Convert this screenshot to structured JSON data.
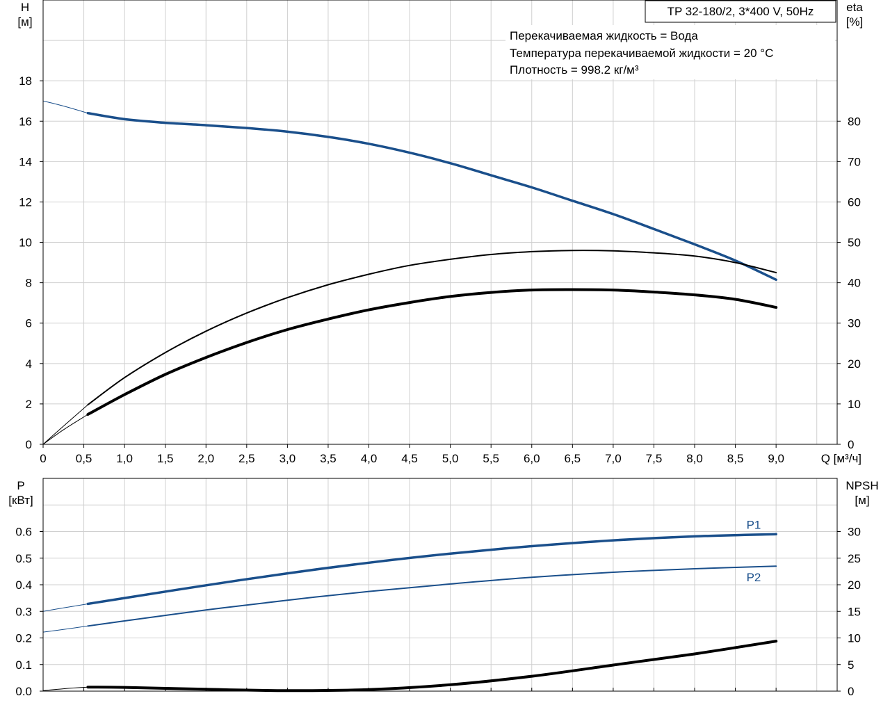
{
  "chart_data": [
    {
      "type": "line",
      "title": "TP 32-180/2, 3*400 V, 50Hz",
      "annotations": [
        "Перекачиваемая жидкость = Вода",
        "Температура перекачиваемой жидкости = 20 °C",
        "Плотность = 998.2 кг/м³"
      ],
      "xlabel": "Q [м³/ч]",
      "ylabel": "H\n[м]",
      "y2label": "eta\n[%]",
      "xlim": [
        0,
        9.75
      ],
      "ylim": [
        0,
        22
      ],
      "y2lim": [
        0,
        110
      ],
      "x_ticks": [
        "0",
        "0,5",
        "1,0",
        "1,5",
        "2,0",
        "2,5",
        "3,0",
        "3,5",
        "4,0",
        "4,5",
        "5,0",
        "5,5",
        "6,0",
        "6,5",
        "7,0",
        "7,5",
        "8,0",
        "8,5",
        "9,0"
      ],
      "y_ticks": [
        "0",
        "2",
        "4",
        "6",
        "8",
        "10",
        "12",
        "14",
        "16",
        "18"
      ],
      "y2_ticks": [
        "0",
        "10",
        "20",
        "30",
        "40",
        "50",
        "60",
        "70",
        "80"
      ],
      "grid": true,
      "series": [
        {
          "name": "",
          "axis": "left",
          "color": "#1a4f8b",
          "extension": {
            "x": [
              0,
              0.25,
              0.55
            ],
            "y": [
              17.0,
              16.75,
              16.4
            ]
          },
          "x": [
            0.55,
            1.0,
            1.5,
            2.0,
            2.5,
            3.0,
            3.5,
            4.0,
            4.5,
            5.0,
            5.5,
            6.0,
            6.5,
            7.0,
            7.5,
            8.0,
            8.5,
            9.0
          ],
          "y": [
            16.4,
            16.1,
            15.92,
            15.8,
            15.66,
            15.48,
            15.22,
            14.88,
            14.44,
            13.92,
            13.32,
            12.72,
            12.06,
            11.4,
            10.66,
            9.9,
            9.1,
            8.15
          ]
        },
        {
          "name": "",
          "axis": "right",
          "color": "#000000",
          "extension": {
            "x": [
              0,
              0.25,
              0.55
            ],
            "y": [
              0,
              4.5,
              9.8
            ]
          },
          "x": [
            0.55,
            1.0,
            1.5,
            2.0,
            2.5,
            3.0,
            3.5,
            4.0,
            4.5,
            5.0,
            5.5,
            6.0,
            6.5,
            7.0,
            7.5,
            8.0,
            8.5,
            9.0
          ],
          "y": [
            9.8,
            16.5,
            22.7,
            28.0,
            32.5,
            36.3,
            39.5,
            42.1,
            44.3,
            45.8,
            47.0,
            47.7,
            48.0,
            47.9,
            47.4,
            46.6,
            45.0,
            42.5
          ]
        },
        {
          "name": "",
          "axis": "right",
          "color": "#000000",
          "extension": {
            "x": [
              0,
              0.25,
              0.55
            ],
            "y": [
              0,
              3.6,
              7.4
            ]
          },
          "x": [
            0.55,
            1.0,
            1.5,
            2.0,
            2.5,
            3.0,
            3.5,
            4.0,
            4.5,
            5.0,
            5.5,
            6.0,
            6.5,
            7.0,
            7.5,
            8.0,
            8.5,
            9.0
          ],
          "y": [
            7.4,
            12.3,
            17.3,
            21.5,
            25.2,
            28.4,
            31.0,
            33.3,
            35.1,
            36.6,
            37.6,
            38.2,
            38.3,
            38.2,
            37.7,
            37.0,
            35.9,
            33.9
          ]
        }
      ]
    },
    {
      "type": "line",
      "xlim": [
        0,
        9.75
      ],
      "ylabel": "P\n[кВт]",
      "y2label": "NPSH\n[м]",
      "ylim": [
        0,
        0.8
      ],
      "y2lim": [
        0,
        40
      ],
      "y_ticks": [
        "0.0",
        "0.1",
        "0.2",
        "0.3",
        "0.4",
        "0.5",
        "0.6"
      ],
      "y2_ticks": [
        "0",
        "5",
        "10",
        "15",
        "20",
        "25",
        "30"
      ],
      "grid": true,
      "series": [
        {
          "name": "P1",
          "axis": "left",
          "color": "#1a4f8b",
          "extension": {
            "x": [
              0,
              0.25,
              0.55
            ],
            "y": [
              0.3,
              0.313,
              0.328
            ]
          },
          "x": [
            0.55,
            1.0,
            2.0,
            3.0,
            4.0,
            5.0,
            6.0,
            7.0,
            8.0,
            9.0
          ],
          "y": [
            0.328,
            0.35,
            0.398,
            0.443,
            0.483,
            0.517,
            0.545,
            0.567,
            0.582,
            0.59
          ]
        },
        {
          "name": "P2",
          "axis": "left",
          "color": "#1a4f8b",
          "extension": {
            "x": [
              0,
              0.25,
              0.55
            ],
            "y": [
              0.222,
              0.232,
              0.245
            ]
          },
          "x": [
            0.55,
            1.0,
            2.0,
            3.0,
            4.0,
            5.0,
            6.0,
            7.0,
            8.0,
            9.0
          ],
          "y": [
            0.245,
            0.264,
            0.305,
            0.342,
            0.375,
            0.403,
            0.428,
            0.447,
            0.46,
            0.47
          ]
        },
        {
          "name": "",
          "axis": "right",
          "color": "#000000",
          "extension": {
            "x": [
              0,
              0.25,
              0.55
            ],
            "y": [
              0.1,
              0.45,
              0.75
            ]
          },
          "x": [
            0.55,
            1.0,
            2.0,
            3.0,
            4.0,
            5.0,
            6.0,
            7.0,
            8.0,
            9.0
          ],
          "y": [
            0.75,
            0.7,
            0.35,
            0.1,
            0.3,
            1.2,
            2.8,
            4.9,
            7.0,
            9.4
          ]
        }
      ]
    }
  ]
}
